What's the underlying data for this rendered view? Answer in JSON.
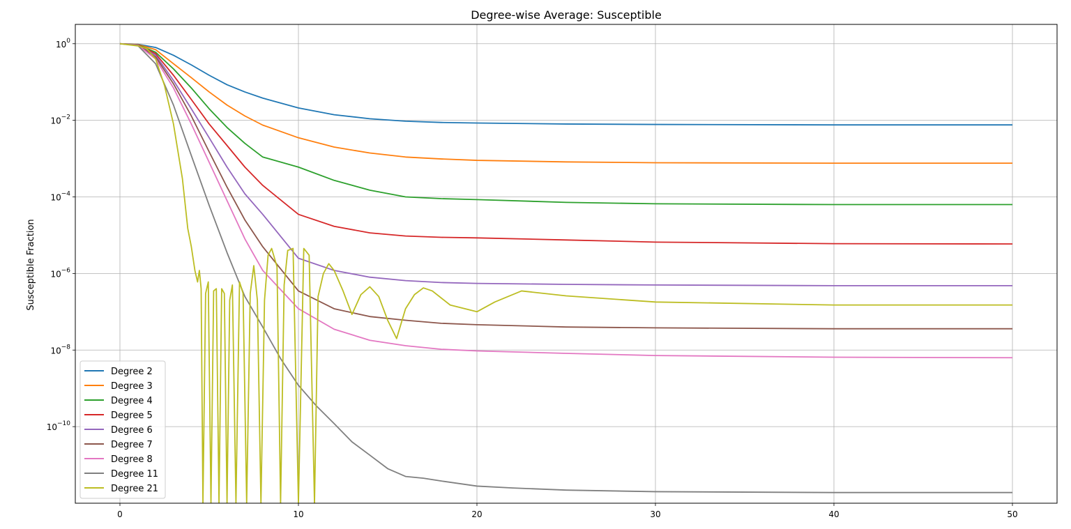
{
  "chart_data": {
    "type": "line",
    "title": "Degree-wise Average: Susceptible",
    "xlabel": "",
    "ylabel": "Susceptible Fraction",
    "yscale": "log",
    "xlim": [
      -2.5,
      52.5
    ],
    "ylim": [
      1e-12,
      3.2
    ],
    "xticks": [
      0,
      10,
      20,
      30,
      40,
      50
    ],
    "xtick_labels": [
      "0",
      "10",
      "20",
      "30",
      "40",
      "50"
    ],
    "yticks": [
      1,
      0.01,
      0.0001,
      1e-06,
      1e-08,
      1e-10
    ],
    "ytick_labels": [
      {
        "base": "10",
        "exp": "0"
      },
      {
        "base": "10",
        "exp": "−2"
      },
      {
        "base": "10",
        "exp": "−4"
      },
      {
        "base": "10",
        "exp": "−6"
      },
      {
        "base": "10",
        "exp": "−8"
      },
      {
        "base": "10",
        "exp": "−10"
      }
    ],
    "grid": true,
    "legend_position": "lower-left",
    "series": [
      {
        "name": "Degree 2",
        "color": "#1f77b4",
        "x": [
          0,
          1,
          2,
          3,
          4,
          5,
          6,
          7,
          8,
          10,
          12,
          14,
          16,
          18,
          20,
          25,
          30,
          40,
          50
        ],
        "y": [
          1,
          0.97,
          0.8,
          0.5,
          0.28,
          0.15,
          0.085,
          0.055,
          0.038,
          0.021,
          0.014,
          0.011,
          0.0095,
          0.0088,
          0.0085,
          0.008,
          0.0078,
          0.0076,
          0.0076
        ]
      },
      {
        "name": "Degree 3",
        "color": "#ff7f0e",
        "x": [
          0,
          1,
          2,
          3,
          4,
          5,
          6,
          7,
          8,
          10,
          12,
          14,
          16,
          18,
          20,
          25,
          30,
          40,
          50
        ],
        "y": [
          1,
          0.96,
          0.7,
          0.3,
          0.13,
          0.055,
          0.025,
          0.013,
          0.0075,
          0.0035,
          0.002,
          0.0014,
          0.0011,
          0.00098,
          0.0009,
          0.00082,
          0.00078,
          0.00076,
          0.00076
        ]
      },
      {
        "name": "Degree 4",
        "color": "#2ca02c",
        "x": [
          0,
          1,
          2,
          3,
          4,
          5,
          6,
          7,
          8,
          10,
          12,
          14,
          16,
          18,
          20,
          25,
          30,
          40,
          50
        ],
        "y": [
          1,
          0.95,
          0.6,
          0.22,
          0.07,
          0.02,
          0.0065,
          0.0025,
          0.0011,
          0.0006,
          0.00027,
          0.00015,
          0.0001,
          9e-05,
          8.5e-05,
          7.2e-05,
          6.6e-05,
          6.3e-05,
          6.3e-05
        ]
      },
      {
        "name": "Degree 5",
        "color": "#d62728",
        "x": [
          0,
          1,
          2,
          3,
          4,
          5,
          6,
          7,
          8,
          10,
          12,
          14,
          16,
          18,
          20,
          25,
          30,
          40,
          50
        ],
        "y": [
          1,
          0.94,
          0.55,
          0.15,
          0.035,
          0.008,
          0.0022,
          0.0006,
          0.0002,
          3.5e-05,
          1.7e-05,
          1.15e-05,
          9.5e-06,
          8.8e-06,
          8.5e-06,
          7.5e-06,
          6.6e-06,
          6e-06,
          5.9e-06
        ]
      },
      {
        "name": "Degree 6",
        "color": "#9467bd",
        "x": [
          0,
          1,
          2,
          3,
          4,
          5,
          6,
          7,
          8,
          10,
          12,
          14,
          16,
          18,
          20,
          25,
          30,
          40,
          50
        ],
        "y": [
          1,
          0.93,
          0.5,
          0.11,
          0.02,
          0.0035,
          0.0006,
          0.00012,
          3.5e-05,
          2.5e-06,
          1.2e-06,
          8e-07,
          6.5e-07,
          5.8e-07,
          5.5e-07,
          5.2e-07,
          5e-07,
          4.8e-07,
          4.8e-07
        ]
      },
      {
        "name": "Degree 7",
        "color": "#8c564b",
        "x": [
          0,
          1,
          2,
          3,
          4,
          5,
          6,
          7,
          8,
          10,
          12,
          14,
          16,
          18,
          20,
          25,
          30,
          40,
          50
        ],
        "y": [
          1,
          0.93,
          0.45,
          0.09,
          0.013,
          0.0015,
          0.00018,
          2.5e-05,
          5e-06,
          3.5e-07,
          1.2e-07,
          7.5e-08,
          6e-08,
          5e-08,
          4.6e-08,
          4e-08,
          3.8e-08,
          3.6e-08,
          3.6e-08
        ]
      },
      {
        "name": "Degree 8",
        "color": "#e377c2",
        "x": [
          0,
          1,
          2,
          3,
          4,
          5,
          6,
          7,
          8,
          10,
          12,
          14,
          16,
          18,
          20,
          25,
          30,
          40,
          50
        ],
        "y": [
          1,
          0.92,
          0.4,
          0.07,
          0.008,
          0.0008,
          8e-05,
          8e-06,
          1.2e-06,
          1.2e-07,
          3.5e-08,
          1.8e-08,
          1.3e-08,
          1.05e-08,
          9.5e-09,
          8.2e-09,
          7.2e-09,
          6.5e-09,
          6.3e-09
        ]
      },
      {
        "name": "Degree 11",
        "color": "#7f7f7f",
        "x": [
          0,
          1,
          2,
          3,
          4,
          5,
          6,
          7,
          8,
          9,
          10,
          11,
          12,
          13,
          14,
          15,
          16,
          17,
          18,
          20,
          22,
          25,
          30,
          40,
          50
        ],
        "y": [
          1,
          0.9,
          0.3,
          0.025,
          0.0012,
          6e-05,
          3.5e-06,
          2.5e-07,
          4e-08,
          6e-09,
          1.2e-09,
          3.5e-10,
          1.2e-10,
          4e-11,
          1.8e-11,
          8e-12,
          5e-12,
          4.5e-12,
          3.8e-12,
          2.8e-12,
          2.5e-12,
          2.2e-12,
          2e-12,
          1.9e-12,
          1.9e-12
        ]
      },
      {
        "name": "Degree 21",
        "color": "#bcbd22",
        "x": [
          0,
          1,
          1.5,
          2,
          2.5,
          3,
          3.5,
          3.8,
          4.0,
          4.2,
          4.35,
          4.45,
          4.55,
          4.65,
          4.8,
          4.95,
          5.1,
          5.25,
          5.4,
          5.55,
          5.7,
          5.85,
          6.0,
          6.15,
          6.3,
          6.5,
          6.7,
          6.9,
          7.1,
          7.3,
          7.5,
          7.7,
          7.9,
          8.1,
          8.3,
          8.5,
          8.8,
          9.0,
          9.2,
          9.4,
          9.7,
          10.0,
          10.3,
          10.6,
          10.9,
          11.1,
          11.4,
          11.7,
          12.0,
          12.5,
          13.0,
          13.5,
          14.0,
          14.5,
          15.0,
          15.5,
          16.0,
          16.5,
          17.0,
          17.5,
          18.5,
          20.0,
          21.0,
          22.5,
          25.0,
          30.0,
          40.0,
          50.0
        ],
        "y": [
          1,
          0.88,
          0.75,
          0.4,
          0.08,
          0.008,
          0.0003,
          1.5e-05,
          5e-06,
          1.2e-06,
          6e-07,
          1.2e-06,
          4e-07,
          1e-12,
          3e-07,
          6e-07,
          1e-12,
          3.5e-07,
          4e-07,
          1e-12,
          4e-07,
          3e-07,
          1e-12,
          2e-07,
          5e-07,
          1e-12,
          6e-07,
          3e-07,
          1e-12,
          3e-07,
          1.6e-06,
          2e-07,
          1e-12,
          2e-07,
          3e-06,
          4.5e-06,
          1.5e-06,
          1e-12,
          5e-07,
          4e-06,
          4.5e-06,
          1e-12,
          4.5e-06,
          3e-06,
          1e-12,
          2.5e-07,
          1e-06,
          1.8e-06,
          1.2e-06,
          3.5e-07,
          8.5e-08,
          2.8e-07,
          4.5e-07,
          2.5e-07,
          6e-08,
          2e-08,
          1.2e-07,
          2.8e-07,
          4.2e-07,
          3.5e-07,
          1.5e-07,
          1e-07,
          1.8e-07,
          3.5e-07,
          2.6e-07,
          1.8e-07,
          1.5e-07,
          1.5e-07
        ]
      }
    ]
  }
}
